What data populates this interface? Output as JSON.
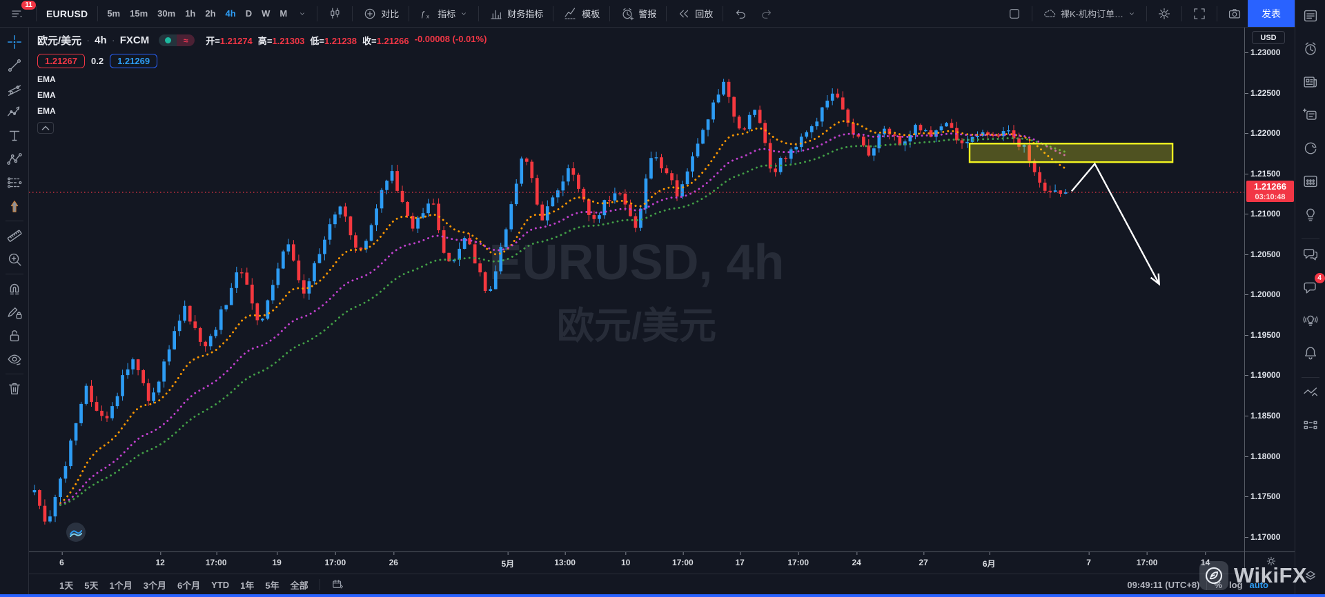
{
  "header": {
    "badge_count": "11",
    "symbol": "EURUSD",
    "timeframes": [
      "5m",
      "15m",
      "30m",
      "1h",
      "2h",
      "4h",
      "D",
      "W",
      "M"
    ],
    "active_timeframe": "4h",
    "compare_label": "对比",
    "indicators_label": "指标",
    "fundamentals_label": "财务指标",
    "template_label": "模板",
    "alert_label": "警报",
    "replay_label": "回放",
    "layout_name": "裸K-机构订单…",
    "publish_label": "发表"
  },
  "legend": {
    "title": "欧元/美元",
    "interval": "4h",
    "exchange": "FXCM",
    "toggle_glyph": "≈",
    "ohlc": [
      {
        "label": "开",
        "value": "1.21274"
      },
      {
        "label": "高",
        "value": "1.21303"
      },
      {
        "label": "低",
        "value": "1.21238"
      },
      {
        "label": "收",
        "value": "1.21266"
      }
    ],
    "change": "-0.00008 (-0.01%)"
  },
  "quote": {
    "sell": "1.21267",
    "spread": "0.2",
    "buy": "1.21269"
  },
  "indicator_rows": [
    {
      "label": "EMA"
    },
    {
      "label": "EMA"
    },
    {
      "label": "EMA"
    }
  ],
  "collapse_glyph": "⌃",
  "watermark": {
    "line1": "EURUSD, 4h",
    "line2": "欧元/美元"
  },
  "price_axis": {
    "currency": "USD",
    "ticks": [
      "1.23000",
      "1.22500",
      "1.22000",
      "1.21500",
      "1.21000",
      "1.20500",
      "1.20000",
      "1.19500",
      "1.19000",
      "1.18500",
      "1.18000",
      "1.17500",
      "1.17000"
    ],
    "last_price": "1.21266",
    "countdown": "03:10:48"
  },
  "time_axis": {
    "labels": [
      {
        "text": "6",
        "t": 0.027
      },
      {
        "text": "12",
        "t": 0.108
      },
      {
        "text": "17:00",
        "t": 0.154
      },
      {
        "text": "19",
        "t": 0.204
      },
      {
        "text": "17:00",
        "t": 0.252
      },
      {
        "text": "26",
        "t": 0.3
      },
      {
        "text": "5月",
        "t": 0.394
      },
      {
        "text": "13:00",
        "t": 0.441
      },
      {
        "text": "10",
        "t": 0.491
      },
      {
        "text": "17:00",
        "t": 0.538
      },
      {
        "text": "17",
        "t": 0.585
      },
      {
        "text": "17:00",
        "t": 0.633
      },
      {
        "text": "24",
        "t": 0.681
      },
      {
        "text": "27",
        "t": 0.736
      },
      {
        "text": "6月",
        "t": 0.79
      },
      {
        "text": "7",
        "t": 0.872
      },
      {
        "text": "17:00",
        "t": 0.92
      },
      {
        "text": "14",
        "t": 0.968
      }
    ]
  },
  "footer": {
    "ranges": [
      "1天",
      "5天",
      "1个月",
      "3个月",
      "6个月",
      "YTD",
      "1年",
      "5年",
      "全部"
    ],
    "clock": "09:49:11 (UTC+8)",
    "percent_label": "%",
    "log_label": "log",
    "auto_label": "auto"
  },
  "brand": {
    "name": "WikiFX"
  },
  "left_toolbar": [
    "crosshair",
    "trend-line",
    "fib-tool",
    "wave-tool",
    "text-tool",
    "xabcd-pattern",
    "forecast-tool",
    "arrow-marker",
    "divider",
    "ruler",
    "zoom-in",
    "divider",
    "magnet",
    "drawing-edit-lock",
    "lock-all",
    "hide-all",
    "divider",
    "remove-all"
  ],
  "right_toolbar": [
    "watchlist",
    "alarm-clock",
    "news",
    "notes",
    "hotlist",
    "economic-calendar",
    "ideas-bulb",
    "divider",
    "public-chat",
    "private-chat",
    "ideas-stream",
    "notifications",
    "divider",
    "markets-arrows",
    "dom-grid"
  ],
  "right_toolbar_badge": {
    "icon": "private-chat",
    "count": "4"
  },
  "chart_data": {
    "type": "candlestick",
    "symbol": "EURUSD",
    "interval": "4h",
    "title": "欧元/美元 4h FXCM",
    "price_top": 1.23307,
    "price_bottom": 1.16817,
    "tick_step": 0.005,
    "visible_tick_range": [
      1.17,
      1.23
    ],
    "up_color": "#2d9cf4",
    "down_color": "#f5383f",
    "candle_count": 200,
    "candle_zone": [
      0.0045,
      0.853
    ],
    "last_price": 1.21266,
    "price_path": [
      [
        0.0,
        1.1755
      ],
      [
        0.012,
        1.1712
      ],
      [
        0.03,
        1.179
      ],
      [
        0.05,
        1.1885
      ],
      [
        0.068,
        1.184
      ],
      [
        0.095,
        1.1925
      ],
      [
        0.112,
        1.1862
      ],
      [
        0.145,
        1.1985
      ],
      [
        0.165,
        1.1928
      ],
      [
        0.2,
        1.2035
      ],
      [
        0.218,
        1.1962
      ],
      [
        0.245,
        1.2062
      ],
      [
        0.262,
        1.2002
      ],
      [
        0.295,
        1.2115
      ],
      [
        0.315,
        1.2048
      ],
      [
        0.345,
        1.2155
      ],
      [
        0.365,
        1.2082
      ],
      [
        0.385,
        1.2122
      ],
      [
        0.4,
        1.2032
      ],
      [
        0.42,
        1.2072
      ],
      [
        0.44,
        1.1992
      ],
      [
        0.475,
        1.2178
      ],
      [
        0.492,
        1.2092
      ],
      [
        0.52,
        1.2162
      ],
      [
        0.54,
        1.2088
      ],
      [
        0.565,
        1.2135
      ],
      [
        0.582,
        1.2078
      ],
      [
        0.6,
        1.218
      ],
      [
        0.625,
        1.2122
      ],
      [
        0.655,
        1.2228
      ],
      [
        0.67,
        1.2262
      ],
      [
        0.685,
        1.2195
      ],
      [
        0.7,
        1.2238
      ],
      [
        0.715,
        1.2152
      ],
      [
        0.74,
        1.2188
      ],
      [
        0.758,
        1.2218
      ],
      [
        0.775,
        1.2256
      ],
      [
        0.79,
        1.2205
      ],
      [
        0.81,
        1.2172
      ],
      [
        0.825,
        1.2212
      ],
      [
        0.84,
        1.2182
      ],
      [
        0.855,
        1.2212
      ],
      [
        0.87,
        1.2195
      ],
      [
        0.885,
        1.2208
      ],
      [
        0.9,
        1.2188
      ],
      [
        0.915,
        1.2202
      ],
      [
        0.93,
        1.2192
      ],
      [
        0.945,
        1.2202
      ],
      [
        0.962,
        1.2178
      ],
      [
        0.978,
        1.2128
      ],
      [
        1.0,
        1.2127
      ]
    ],
    "emas": [
      {
        "label": "EMA",
        "period": 16,
        "color": "#ff9800"
      },
      {
        "label": "EMA",
        "period": 32,
        "color": "#c241cf"
      },
      {
        "label": "EMA",
        "period": 48,
        "color": "#43a047"
      }
    ],
    "annotations": {
      "rect": {
        "t1": 0.774,
        "t2": 0.941,
        "price_top": 1.2187,
        "price_bottom": 1.2164,
        "stroke": "#f3f521",
        "fill": "rgba(243,245,33,0.27)"
      },
      "arrow": {
        "points": [
          [
            0.858,
            1.2128
          ],
          [
            0.877,
            1.2162
          ],
          [
            0.93,
            1.2013
          ]
        ],
        "color": "#ffffff"
      },
      "last_price_line": {
        "price": 1.21266,
        "color": "#f23645"
      }
    }
  }
}
